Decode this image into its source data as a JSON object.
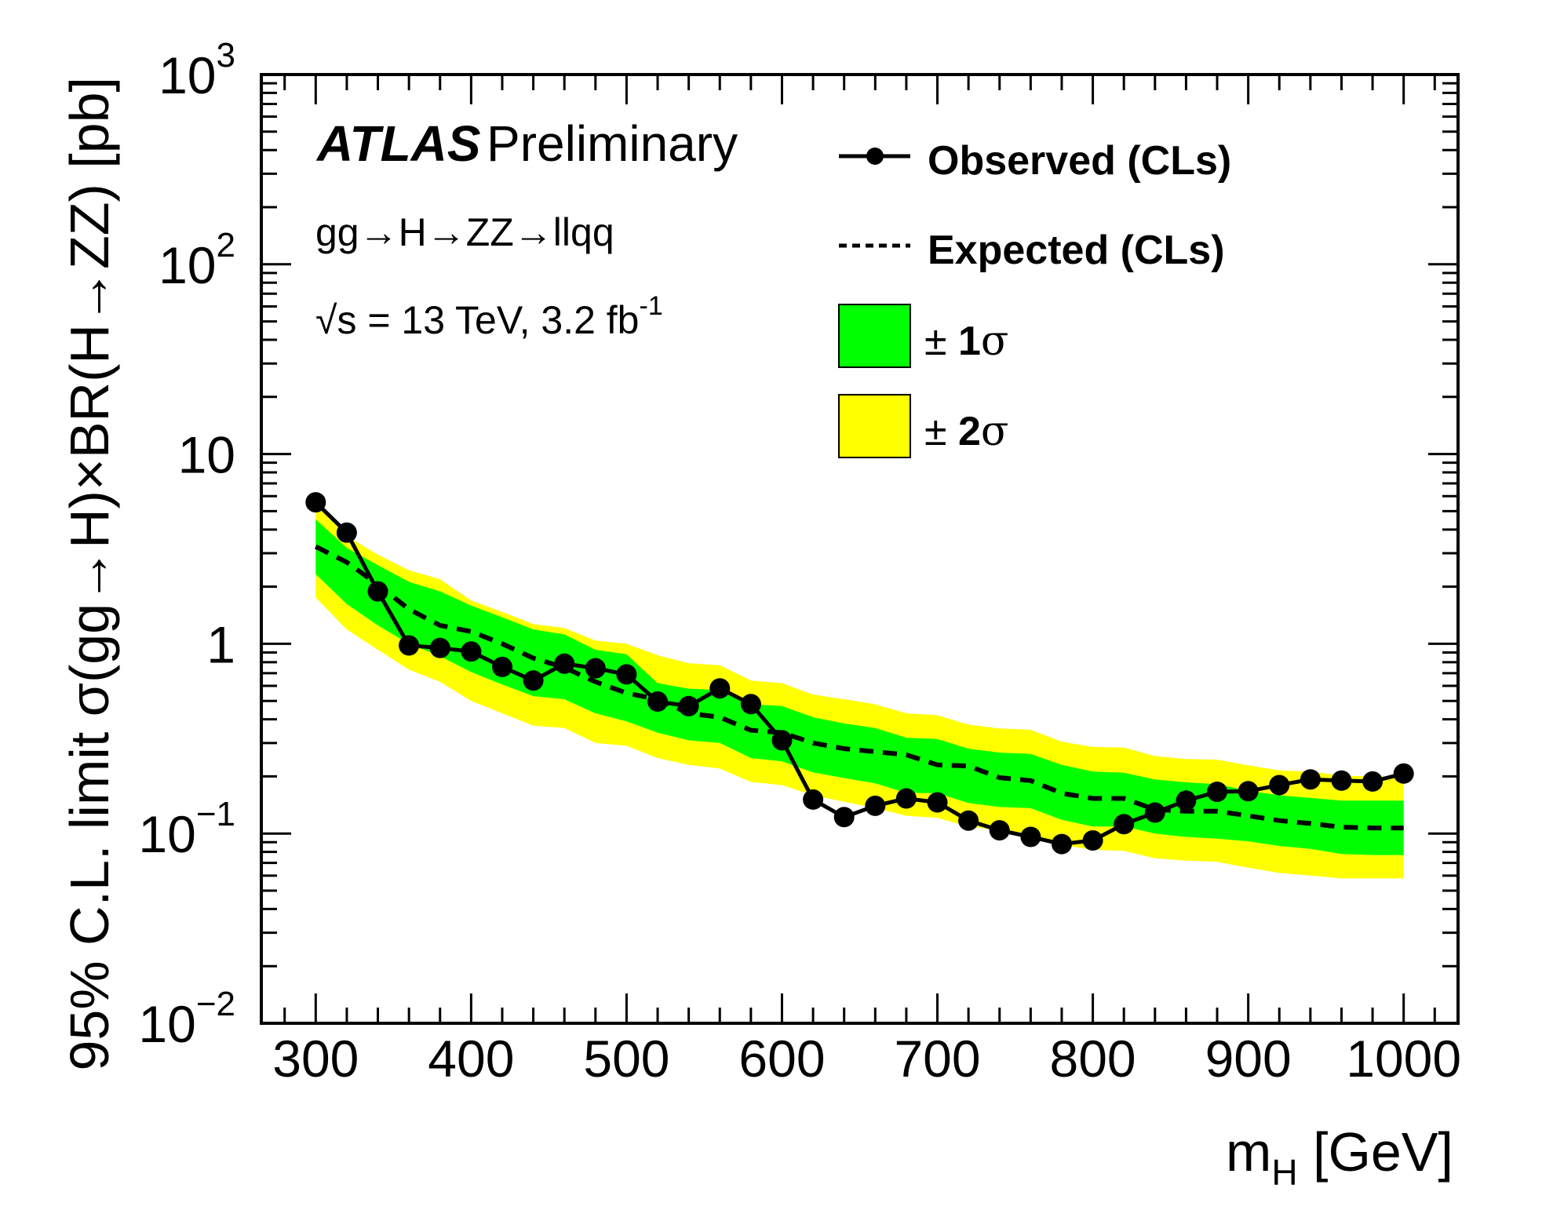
{
  "chart_data": {
    "type": "line",
    "title": "",
    "xlabel": "m_H [GeV]",
    "xlabel_main": "m",
    "xlabel_sub": "H",
    "xlabel_unit": " [GeV]",
    "ylabel": "95% C.L. limit σ(gg→H)×BR(H→ZZ) [pb]",
    "xlim": [
      265,
      1035
    ],
    "ylim": [
      0.01,
      1000
    ],
    "yscale": "log",
    "grid": false,
    "x_ticks": [
      300,
      400,
      500,
      600,
      700,
      800,
      900,
      1000
    ],
    "x_tick_labels": [
      "300",
      "400",
      "500",
      "600",
      "700",
      "800",
      "900",
      "1000"
    ],
    "x_minor_step": 20,
    "y_ticks": [
      {
        "value": 1000,
        "base": "10",
        "exp": "3"
      },
      {
        "value": 100,
        "base": "10",
        "exp": "2"
      },
      {
        "value": 10,
        "base": "10",
        "exp": ""
      },
      {
        "value": 1,
        "base": "1",
        "exp": ""
      },
      {
        "value": 0.1,
        "base": "10",
        "exp": "−1"
      },
      {
        "value": 0.01,
        "base": "10",
        "exp": "−2"
      }
    ],
    "annotations": {
      "experiment": "ATLAS",
      "status": "Preliminary",
      "process": "gg→H→ZZ→llqq",
      "energy_sqrt": "√",
      "energy_text": "s = 13 TeV, 3.2 fb",
      "energy_sup": "-1"
    },
    "legend": {
      "placement": "top-right",
      "entries": [
        {
          "key": "observed",
          "label": "Observed (CLs)",
          "style": "line-marker"
        },
        {
          "key": "expected",
          "label": "Expected (CLs)",
          "style": "dashed"
        },
        {
          "key": "band1",
          "label_prefix": "± ",
          "label_num": "1",
          "label_sym": "σ",
          "style": "box",
          "color": "#00ff00"
        },
        {
          "key": "band2",
          "label_prefix": "± ",
          "label_num": "2",
          "label_sym": "σ",
          "style": "box",
          "color": "#ffff00"
        }
      ]
    },
    "colors": {
      "observed": "#000000",
      "expected": "#000000",
      "band1": "#00ff00",
      "band2": "#ffff00"
    },
    "x": [
      300,
      320,
      340,
      360,
      380,
      400,
      420,
      440,
      460,
      480,
      500,
      520,
      540,
      560,
      580,
      600,
      620,
      640,
      660,
      680,
      700,
      720,
      740,
      760,
      780,
      800,
      820,
      840,
      860,
      880,
      900,
      920,
      940,
      960,
      980,
      1000
    ],
    "series": [
      {
        "name": "Observed (CLs)",
        "values": [
          5.57,
          3.85,
          1.89,
          0.98,
          0.95,
          0.91,
          0.755,
          0.64,
          0.786,
          0.743,
          0.69,
          0.496,
          0.469,
          0.582,
          0.481,
          0.31,
          0.151,
          0.122,
          0.14,
          0.153,
          0.146,
          0.117,
          0.104,
          0.096,
          0.088,
          0.092,
          0.112,
          0.129,
          0.149,
          0.166,
          0.167,
          0.18,
          0.193,
          0.19,
          0.188,
          0.207
        ]
      },
      {
        "name": "Expected (CLs)",
        "values": [
          3.25,
          2.69,
          2.05,
          1.52,
          1.25,
          1.16,
          1.0,
          0.84,
          0.75,
          0.63,
          0.55,
          0.51,
          0.43,
          0.41,
          0.35,
          0.34,
          0.3,
          0.28,
          0.27,
          0.26,
          0.23,
          0.227,
          0.197,
          0.19,
          0.163,
          0.153,
          0.153,
          0.134,
          0.131,
          0.131,
          0.124,
          0.117,
          0.113,
          0.108,
          0.107,
          0.107
        ]
      },
      {
        "name": "+1σ",
        "values": [
          4.53,
          3.2,
          2.6,
          2.12,
          1.89,
          1.59,
          1.38,
          1.19,
          1.12,
          0.93,
          0.88,
          0.62,
          0.58,
          0.57,
          0.48,
          0.47,
          0.41,
          0.38,
          0.36,
          0.32,
          0.315,
          0.28,
          0.267,
          0.263,
          0.23,
          0.212,
          0.209,
          0.193,
          0.186,
          0.182,
          0.168,
          0.159,
          0.154,
          0.149,
          0.149,
          0.149
        ]
      },
      {
        "name": "-1σ",
        "values": [
          2.33,
          1.62,
          1.25,
          1.0,
          0.86,
          0.71,
          0.61,
          0.53,
          0.51,
          0.43,
          0.39,
          0.34,
          0.31,
          0.3,
          0.25,
          0.24,
          0.21,
          0.196,
          0.184,
          0.164,
          0.163,
          0.145,
          0.138,
          0.136,
          0.118,
          0.109,
          0.109,
          0.1,
          0.096,
          0.094,
          0.091,
          0.086,
          0.083,
          0.078,
          0.077,
          0.077
        ]
      },
      {
        "name": "+2σ",
        "values": [
          5.4,
          3.69,
          2.95,
          2.44,
          2.19,
          1.69,
          1.47,
          1.27,
          1.21,
          1.04,
          1.0,
          0.87,
          0.79,
          0.77,
          0.64,
          0.62,
          0.54,
          0.51,
          0.48,
          0.43,
          0.42,
          0.375,
          0.358,
          0.352,
          0.305,
          0.286,
          0.284,
          0.256,
          0.247,
          0.245,
          0.229,
          0.215,
          0.212,
          0.202,
          0.2,
          0.199
        ]
      },
      {
        "name": "-2σ",
        "values": [
          1.75,
          1.19,
          0.93,
          0.73,
          0.63,
          0.5,
          0.43,
          0.37,
          0.36,
          0.3,
          0.29,
          0.25,
          0.23,
          0.22,
          0.187,
          0.18,
          0.159,
          0.147,
          0.136,
          0.124,
          0.121,
          0.109,
          0.104,
          0.1,
          0.087,
          0.082,
          0.081,
          0.074,
          0.072,
          0.071,
          0.066,
          0.062,
          0.06,
          0.058,
          0.058,
          0.058
        ]
      }
    ]
  }
}
